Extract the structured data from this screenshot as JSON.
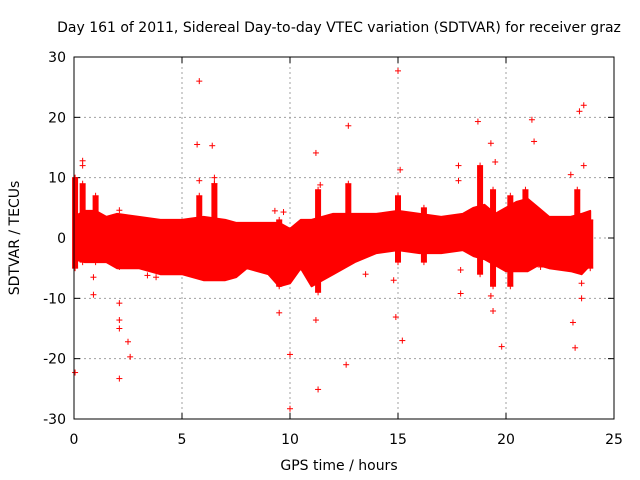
{
  "chart_data": {
    "type": "scatter",
    "title": "Day 161 of 2011, Sidereal Day-to-day VTEC variation (SDTVAR) for receiver graz",
    "xlabel": "GPS time / hours",
    "ylabel": "SDTVAR / TECUs",
    "xlim": [
      0,
      25
    ],
    "ylim": [
      -30,
      30
    ],
    "xticks": [
      0,
      5,
      10,
      15,
      20,
      25
    ],
    "yticks": [
      -30,
      -20,
      -10,
      0,
      10,
      20,
      30
    ],
    "grid": true,
    "marker": "+",
    "color": "#ff0000",
    "band_coverage_hours": [
      0,
      23.9
    ],
    "envelope": {
      "x": [
        0,
        0.5,
        1,
        1.5,
        2,
        3,
        4,
        5,
        6,
        7,
        7.5,
        8,
        9,
        9.5,
        10,
        10.5,
        11,
        11.5,
        12,
        13,
        14,
        15,
        16,
        17,
        18,
        18.5,
        19,
        19.5,
        20,
        20.5,
        21,
        21.5,
        22,
        23,
        23.5,
        23.9
      ],
      "upper": [
        3.5,
        4.5,
        4.5,
        3.5,
        4,
        3.5,
        3,
        3,
        3.5,
        3,
        2.5,
        2.5,
        2.5,
        2.5,
        1.5,
        3,
        3,
        3.5,
        4,
        4,
        4,
        4.5,
        4,
        3.5,
        4,
        5,
        5.5,
        4,
        5,
        6,
        6.5,
        5,
        3.5,
        3.5,
        4,
        4.5
      ],
      "lower": [
        -3.5,
        -4,
        -4,
        -4,
        -5,
        -5,
        -6,
        -6,
        -7,
        -7,
        -6.5,
        -5,
        -6,
        -8,
        -7.5,
        -5,
        -8,
        -7,
        -6,
        -4,
        -2.5,
        -2,
        -2.5,
        -2.5,
        -2,
        -3,
        -3.5,
        -4.5,
        -5.5,
        -5.5,
        -5.5,
        -4.5,
        -5,
        -5.5,
        -6,
        -4.5
      ]
    },
    "spikes": [
      {
        "x": 0.05,
        "top": 10,
        "bottom": -5
      },
      {
        "x": 0.4,
        "top": 9,
        "bottom": -4
      },
      {
        "x": 1.0,
        "top": 7,
        "bottom": -4
      },
      {
        "x": 5.8,
        "top": 7,
        "bottom": -6
      },
      {
        "x": 6.5,
        "top": 9,
        "bottom": -6
      },
      {
        "x": 9.5,
        "top": 3,
        "bottom": -8
      },
      {
        "x": 11.3,
        "top": 8,
        "bottom": -9
      },
      {
        "x": 12.7,
        "top": 9,
        "bottom": -4
      },
      {
        "x": 15.0,
        "top": 7,
        "bottom": -4
      },
      {
        "x": 16.2,
        "top": 5,
        "bottom": -4
      },
      {
        "x": 18.8,
        "top": 12,
        "bottom": -6
      },
      {
        "x": 19.4,
        "top": 8,
        "bottom": -8
      },
      {
        "x": 20.2,
        "top": 7,
        "bottom": -8
      },
      {
        "x": 20.9,
        "top": 8,
        "bottom": -5
      },
      {
        "x": 23.3,
        "top": 8,
        "bottom": -5
      },
      {
        "x": 23.9,
        "top": 3,
        "bottom": -5
      }
    ],
    "outliers": [
      [
        0.05,
        -22.3
      ],
      [
        0.4,
        12.8
      ],
      [
        0.4,
        12.0
      ],
      [
        0.9,
        -6.5
      ],
      [
        0.9,
        -9.4
      ],
      [
        2.1,
        4.6
      ],
      [
        2.1,
        -4.8
      ],
      [
        2.1,
        -10.8
      ],
      [
        2.1,
        -13.6
      ],
      [
        2.1,
        -15.0
      ],
      [
        2.1,
        -23.3
      ],
      [
        2.5,
        -17.2
      ],
      [
        2.6,
        -19.7
      ],
      [
        3.4,
        -6.2
      ],
      [
        3.8,
        -6.5
      ],
      [
        5.7,
        15.5
      ],
      [
        5.8,
        26.0
      ],
      [
        5.8,
        9.5
      ],
      [
        6.4,
        15.3
      ],
      [
        6.5,
        10.0
      ],
      [
        6.5,
        9.0
      ],
      [
        9.0,
        -4.0
      ],
      [
        9.3,
        4.5
      ],
      [
        9.5,
        -12.4
      ],
      [
        9.7,
        4.3
      ],
      [
        10.0,
        -19.3
      ],
      [
        10.0,
        -28.3
      ],
      [
        11.2,
        14.1
      ],
      [
        11.2,
        -13.6
      ],
      [
        11.3,
        -25.1
      ],
      [
        11.4,
        8.8
      ],
      [
        12.7,
        18.6
      ],
      [
        12.7,
        -3.9
      ],
      [
        12.6,
        -21.0
      ],
      [
        13.5,
        -6.0
      ],
      [
        14.9,
        -13.1
      ],
      [
        14.8,
        -7.0
      ],
      [
        15.0,
        27.7
      ],
      [
        15.1,
        11.3
      ],
      [
        15.2,
        -17.0
      ],
      [
        17.8,
        12.0
      ],
      [
        17.8,
        9.5
      ],
      [
        17.9,
        -5.3
      ],
      [
        17.9,
        -9.2
      ],
      [
        18.7,
        19.3
      ],
      [
        18.9,
        -3.5
      ],
      [
        19.3,
        15.7
      ],
      [
        19.3,
        -9.6
      ],
      [
        19.4,
        -12.1
      ],
      [
        19.5,
        12.6
      ],
      [
        19.8,
        -18.0
      ],
      [
        21.2,
        19.6
      ],
      [
        21.3,
        16.0
      ],
      [
        21.6,
        -4.8
      ],
      [
        23.0,
        10.5
      ],
      [
        23.1,
        -14.0
      ],
      [
        23.2,
        -18.2
      ],
      [
        23.4,
        21.0
      ],
      [
        23.6,
        22.0
      ],
      [
        23.6,
        12.0
      ],
      [
        23.5,
        -10.0
      ],
      [
        23.5,
        -7.5
      ]
    ]
  }
}
